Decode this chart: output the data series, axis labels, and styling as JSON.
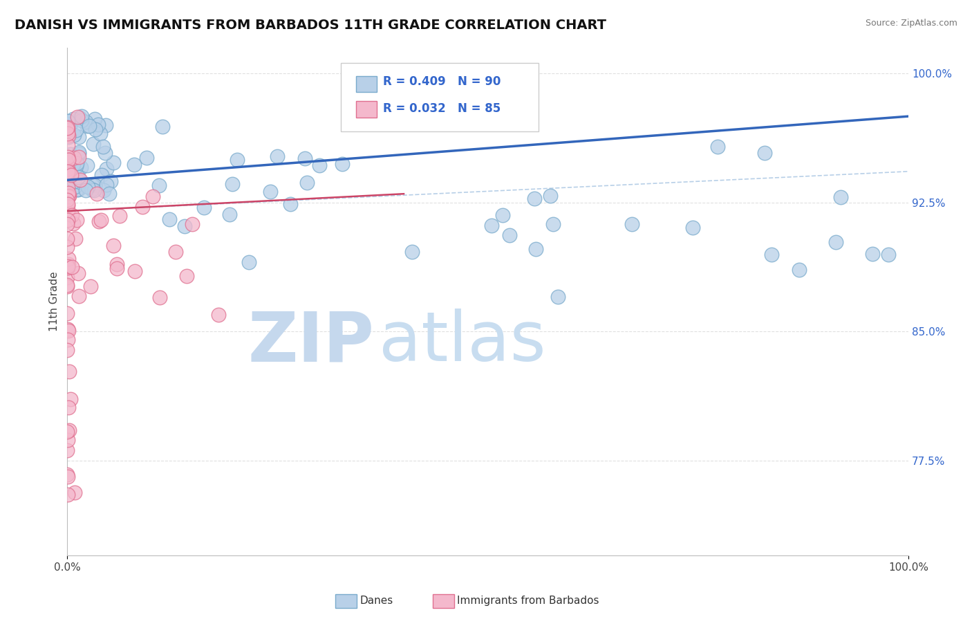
{
  "title": "DANISH VS IMMIGRANTS FROM BARBADOS 11TH GRADE CORRELATION CHART",
  "source": "Source: ZipAtlas.com",
  "ylabel": "11th Grade",
  "yticks_right": [
    77.5,
    85.0,
    92.5,
    100.0
  ],
  "xmin": 0.0,
  "xmax": 100.0,
  "ymin": 72.0,
  "ymax": 101.5,
  "danes_color": "#b8d0e8",
  "danes_edge_color": "#7aabcc",
  "barbados_color": "#f4b8cc",
  "barbados_edge_color": "#e07090",
  "trend_danes_color": "#3366bb",
  "trend_barbados_color": "#cc4466",
  "trend_danes_dashed_color": "#99bbdd",
  "watermark_zip_color": "#c5d8ed",
  "watermark_atlas_color": "#c8ddf0",
  "legend_text_color": "#3366cc",
  "danes_R": 0.409,
  "danes_N": 90,
  "barbados_R": 0.032,
  "barbados_N": 85,
  "trend_danes_x0": 0.0,
  "trend_danes_y0": 93.8,
  "trend_danes_x1": 100.0,
  "trend_danes_y1": 97.5,
  "trend_barb_x0": 0.0,
  "trend_barb_y0": 92.0,
  "trend_barb_x1": 40.0,
  "trend_barb_y1": 93.0,
  "trend_barb_dashed_x0": 0.0,
  "trend_barb_dashed_y0": 92.0,
  "trend_barb_dashed_x1": 100.0,
  "trend_barb_dashed_y1": 94.3
}
